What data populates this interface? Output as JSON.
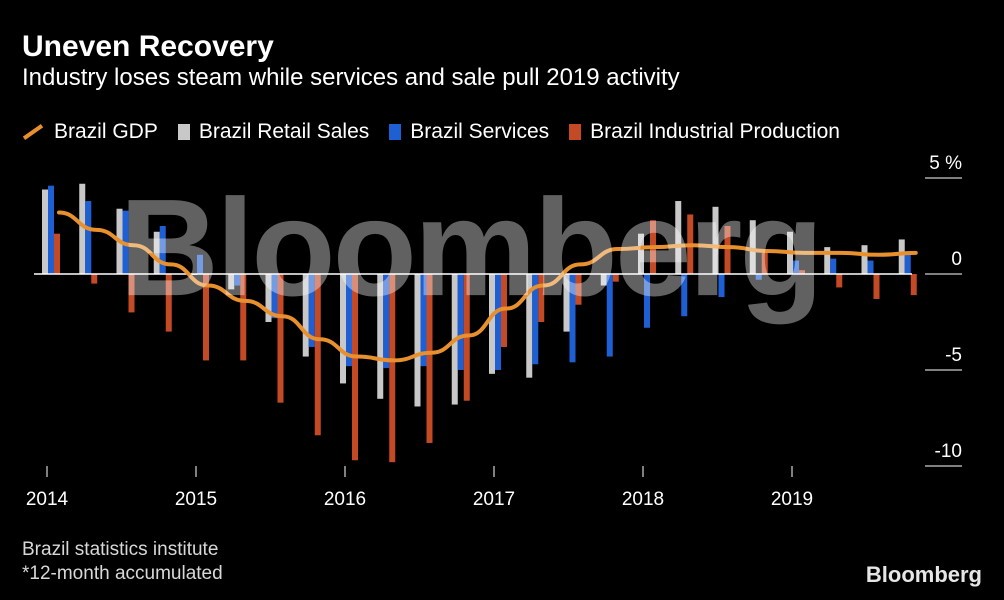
{
  "title": "Uneven Recovery",
  "subtitle": "Industry loses steam while services and sale pull 2019 activity",
  "legend": [
    {
      "label": "Brazil GDP",
      "color": "#e8902e",
      "kind": "line"
    },
    {
      "label": "Brazil Retail Sales",
      "color": "#c8c8c8",
      "kind": "bar"
    },
    {
      "label": "Brazil Services",
      "color": "#1f5fd4",
      "kind": "bar"
    },
    {
      "label": "Brazil Industrial Production",
      "color": "#c44a25",
      "kind": "bar"
    }
  ],
  "source_lines": [
    "Brazil statistics institute",
    "*12-month accumulated"
  ],
  "brand": "Bloomberg",
  "chart_data": {
    "type": "bar",
    "title": "Uneven Recovery",
    "subtitle": "Industry loses steam while services and sale pull 2019 activity",
    "ylim": [
      -10,
      5
    ],
    "yticks": [
      5,
      0,
      -5,
      -10
    ],
    "ytick_labels": [
      "5 %",
      "0",
      "-5",
      "-10"
    ],
    "xticks": [
      "2014",
      "2015",
      "2016",
      "2017",
      "2018",
      "2019"
    ],
    "legend_position": "top",
    "grid": false,
    "watermark": "Bloomberg",
    "categories": [
      "Q1 2014",
      "Q2 2014",
      "Q3 2014",
      "Q4 2014",
      "Q1 2015",
      "Q2 2015",
      "Q3 2015",
      "Q4 2015",
      "Q1 2016",
      "Q2 2016",
      "Q3 2016",
      "Q4 2016",
      "Q1 2017",
      "Q2 2017",
      "Q3 2017",
      "Q4 2017",
      "Q1 2018",
      "Q2 2018",
      "Q3 2018",
      "Q4 2018",
      "Q1 2019",
      "Q2 2019",
      "Q3 2019",
      "Q4 2019"
    ],
    "series": [
      {
        "name": "Brazil Retail Sales",
        "type": "bar",
        "color": "#c8c8c8",
        "values": [
          4.4,
          4.7,
          3.4,
          2.2,
          0.0,
          -0.8,
          -2.5,
          -4.3,
          -5.7,
          -6.5,
          -6.9,
          -6.8,
          -5.2,
          -5.4,
          -3.0,
          -0.6,
          2.1,
          3.8,
          3.5,
          2.8,
          2.2,
          1.4,
          1.5,
          1.8
        ]
      },
      {
        "name": "Brazil Services",
        "type": "bar",
        "color": "#1f5fd4",
        "values": [
          4.6,
          3.8,
          3.3,
          2.5,
          1.0,
          -0.6,
          -2.3,
          -3.8,
          -4.8,
          -4.9,
          -4.8,
          -5.0,
          -5.0,
          -4.7,
          -4.6,
          -4.3,
          -2.8,
          -2.2,
          -1.2,
          -0.3,
          0.7,
          0.8,
          0.7,
          1.1
        ]
      },
      {
        "name": "Brazil Industrial Production",
        "type": "bar",
        "color": "#c44a25",
        "values": [
          2.1,
          -0.5,
          -2.0,
          -3.0,
          -4.5,
          -4.5,
          -6.7,
          -8.4,
          -9.7,
          -9.8,
          -8.8,
          -6.6,
          -3.8,
          -2.5,
          -1.6,
          -0.4,
          2.8,
          3.1,
          2.5,
          1.1,
          0.2,
          -0.7,
          -1.3,
          -1.1
        ]
      },
      {
        "name": "Brazil GDP",
        "type": "line",
        "color": "#e8902e",
        "values": [
          3.2,
          2.3,
          1.5,
          0.5,
          -0.6,
          -1.4,
          -2.2,
          -3.4,
          -4.3,
          -4.5,
          -4.1,
          -3.2,
          -1.8,
          -0.6,
          0.5,
          1.3,
          1.4,
          1.5,
          1.4,
          1.2,
          1.1,
          1.1,
          1.0,
          1.1
        ]
      }
    ]
  }
}
